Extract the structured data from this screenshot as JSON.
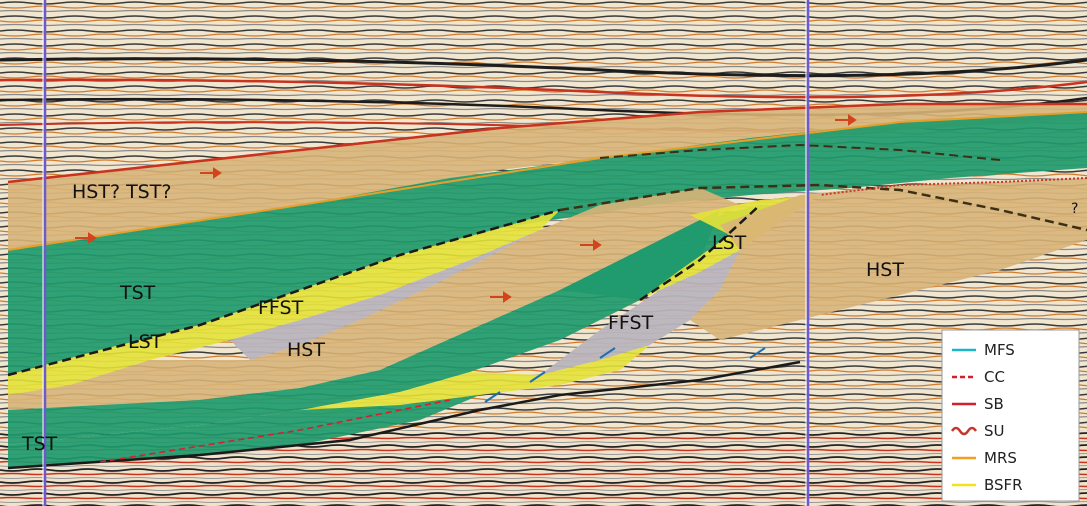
{
  "labels": {
    "hst_tst": "HST? TST?",
    "tst_upper": "TST",
    "lst_left": "LST",
    "ffst_left": "FFST",
    "hst_mid": "HST",
    "lst_right": "LST",
    "ffst_right": "FFST",
    "hst_right": "HST",
    "tst_bottom": "TST",
    "query_right": "?"
  },
  "legend": {
    "items": [
      {
        "label": "MFS",
        "color": "#1fb4c8",
        "style": "solid"
      },
      {
        "label": "CC",
        "color": "#d4202a",
        "style": "dashed"
      },
      {
        "label": "SB",
        "color": "#d4202a",
        "style": "solid"
      },
      {
        "label": "SU",
        "color": "#c0392b",
        "style": "wavy"
      },
      {
        "label": "MRS",
        "color": "#f0a020",
        "style": "solid"
      },
      {
        "label": "BSFR",
        "color": "#f2e21a",
        "style": "solid"
      }
    ]
  },
  "colors": {
    "green": "#1f9a6e",
    "tan": "#d8b479",
    "yellow": "#e4e23a",
    "grey": "#b9b4bd",
    "reflector_dark": "#2a2a2a",
    "reflector_red": "#c8321e"
  }
}
